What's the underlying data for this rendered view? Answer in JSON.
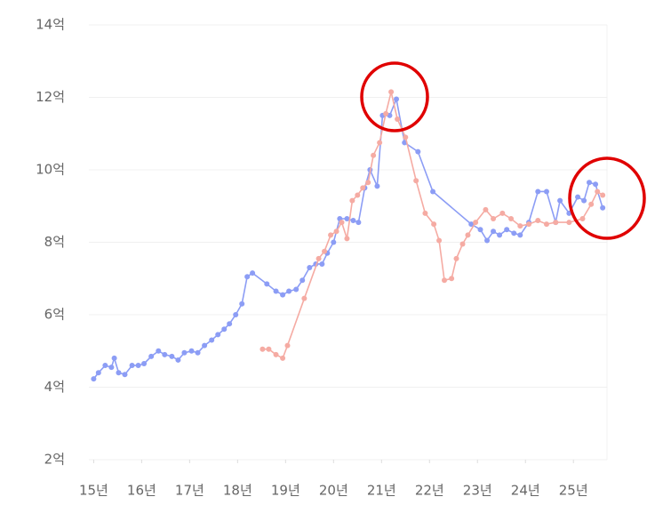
{
  "chart_data": {
    "type": "line",
    "xlim": [
      14.9,
      25.7
    ],
    "xticks": [
      {
        "value": 15,
        "label": "15년"
      },
      {
        "value": 16,
        "label": "16년"
      },
      {
        "value": 17,
        "label": "17년"
      },
      {
        "value": 18,
        "label": "18년"
      },
      {
        "value": 19,
        "label": "19년"
      },
      {
        "value": 20,
        "label": "20년"
      },
      {
        "value": 21,
        "label": "21년"
      },
      {
        "value": 22,
        "label": "22년"
      },
      {
        "value": 23,
        "label": "23년"
      },
      {
        "value": 24,
        "label": "24년"
      },
      {
        "value": 25,
        "label": "25년"
      }
    ],
    "ylim": [
      2,
      14
    ],
    "yticks": [
      {
        "value": 2,
        "label": "2억"
      },
      {
        "value": 4,
        "label": "4억"
      },
      {
        "value": 6,
        "label": "6억"
      },
      {
        "value": 8,
        "label": "8억"
      },
      {
        "value": 10,
        "label": "10억"
      },
      {
        "value": 12,
        "label": "12억"
      },
      {
        "value": 14,
        "label": "14억"
      }
    ],
    "grid": true,
    "series": [
      {
        "color": "#8c9df5",
        "x": [
          15.0,
          15.1,
          15.24,
          15.37,
          15.43,
          15.52,
          15.65,
          15.8,
          15.93,
          16.05,
          16.2,
          16.35,
          16.48,
          16.63,
          16.76,
          16.89,
          17.04,
          17.17,
          17.31,
          17.46,
          17.59,
          17.72,
          17.83,
          17.96,
          18.09,
          18.2,
          18.31,
          18.61,
          18.8,
          18.94,
          19.07,
          19.22,
          19.35,
          19.5,
          19.63,
          19.76,
          19.87,
          20.0,
          20.13,
          20.28,
          20.41,
          20.52,
          20.65,
          20.76,
          20.91,
          21.02,
          21.17,
          21.31,
          21.48,
          21.76,
          22.07,
          22.87,
          23.06,
          23.2,
          23.33,
          23.46,
          23.61,
          23.76,
          23.89,
          24.07,
          24.26,
          24.44,
          24.63,
          24.72,
          24.91,
          25.09,
          25.22,
          25.33,
          25.46,
          25.61
        ],
        "values": [
          4.23,
          4.4,
          4.6,
          4.55,
          4.8,
          4.4,
          4.35,
          4.6,
          4.6,
          4.65,
          4.85,
          5.0,
          4.9,
          4.85,
          4.75,
          4.95,
          5.0,
          4.95,
          5.15,
          5.3,
          5.45,
          5.6,
          5.75,
          6.0,
          6.3,
          7.05,
          7.15,
          6.85,
          6.65,
          6.55,
          6.65,
          6.7,
          6.95,
          7.3,
          7.4,
          7.4,
          7.7,
          8.0,
          8.65,
          8.65,
          8.6,
          8.55,
          9.5,
          10.0,
          9.55,
          11.5,
          11.5,
          11.95,
          10.75,
          10.5,
          9.4,
          8.5,
          8.35,
          8.05,
          8.3,
          8.2,
          8.35,
          8.25,
          8.2,
          8.55,
          9.4,
          9.4,
          8.55,
          9.15,
          8.8,
          9.25,
          9.15,
          9.65,
          9.6,
          8.95
        ]
      },
      {
        "color": "#f5aba3",
        "x": [
          18.52,
          18.65,
          18.8,
          18.94,
          19.04,
          19.39,
          19.69,
          19.81,
          19.94,
          20.06,
          20.17,
          20.28,
          20.39,
          20.5,
          20.61,
          20.72,
          20.83,
          20.96,
          21.09,
          21.2,
          21.33,
          21.5,
          21.72,
          21.91,
          22.09,
          22.2,
          22.31,
          22.46,
          22.56,
          22.69,
          22.8,
          22.96,
          23.17,
          23.33,
          23.52,
          23.7,
          23.89,
          24.07,
          24.26,
          24.44,
          24.63,
          24.91,
          25.19,
          25.37,
          25.5,
          25.61
        ],
        "values": [
          5.05,
          5.05,
          4.9,
          4.8,
          5.15,
          6.45,
          7.55,
          7.75,
          8.2,
          8.3,
          8.55,
          8.1,
          9.15,
          9.3,
          9.5,
          9.65,
          10.4,
          10.75,
          11.55,
          12.15,
          11.4,
          10.9,
          9.7,
          8.8,
          8.5,
          8.05,
          6.95,
          7.0,
          7.55,
          7.95,
          8.2,
          8.55,
          8.9,
          8.65,
          8.8,
          8.65,
          8.45,
          8.5,
          8.6,
          8.5,
          8.55,
          8.55,
          8.65,
          9.05,
          9.4,
          9.3
        ]
      }
    ]
  }
}
